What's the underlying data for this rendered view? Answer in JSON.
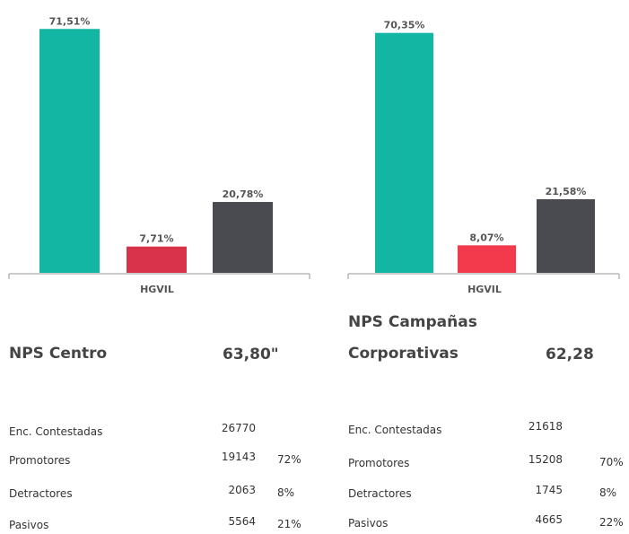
{
  "chart_data": [
    {
      "type": "bar",
      "categories": [
        "HGVIL"
      ],
      "ylim": [
        0,
        75
      ],
      "series": [
        {
          "color": "#13b5a3",
          "values": [
            71.51
          ],
          "value_labels": [
            "71,51%"
          ]
        },
        {
          "color": "#d9334b",
          "values": [
            7.71
          ],
          "value_labels": [
            "7,71%"
          ]
        },
        {
          "color": "#4a4b50",
          "values": [
            20.78
          ],
          "value_labels": [
            "20,78%"
          ]
        }
      ]
    },
    {
      "type": "bar",
      "categories": [
        "HGVIL"
      ],
      "ylim": [
        0,
        75
      ],
      "series": [
        {
          "color": "#13b5a3",
          "values": [
            70.35
          ],
          "value_labels": [
            "70,35%"
          ]
        },
        {
          "color": "#f23a4c",
          "values": [
            8.07
          ],
          "value_labels": [
            "8,07%"
          ]
        },
        {
          "color": "#4a4b50",
          "values": [
            21.58
          ],
          "value_labels": [
            "21,58%"
          ]
        }
      ]
    }
  ],
  "stats": [
    {
      "title": "NPS Centro",
      "score": "63,80\"",
      "rows": [
        [
          "Enc. Contestadas",
          "26770",
          ""
        ],
        [
          "Promotores",
          "19143",
          "72%"
        ],
        [
          "Detractores",
          "2063",
          "8%"
        ],
        [
          "Pasivos",
          "5564",
          "21%"
        ]
      ]
    },
    {
      "title": "NPS Campañas Corporativas",
      "score": "62,28",
      "rows": [
        [
          "Enc. Contestadas",
          "21618",
          ""
        ],
        [
          "Promotores",
          "15208",
          "70%"
        ],
        [
          "Detractores",
          "1745",
          "8%"
        ],
        [
          "Pasivos",
          "4665",
          "22%"
        ]
      ]
    }
  ]
}
